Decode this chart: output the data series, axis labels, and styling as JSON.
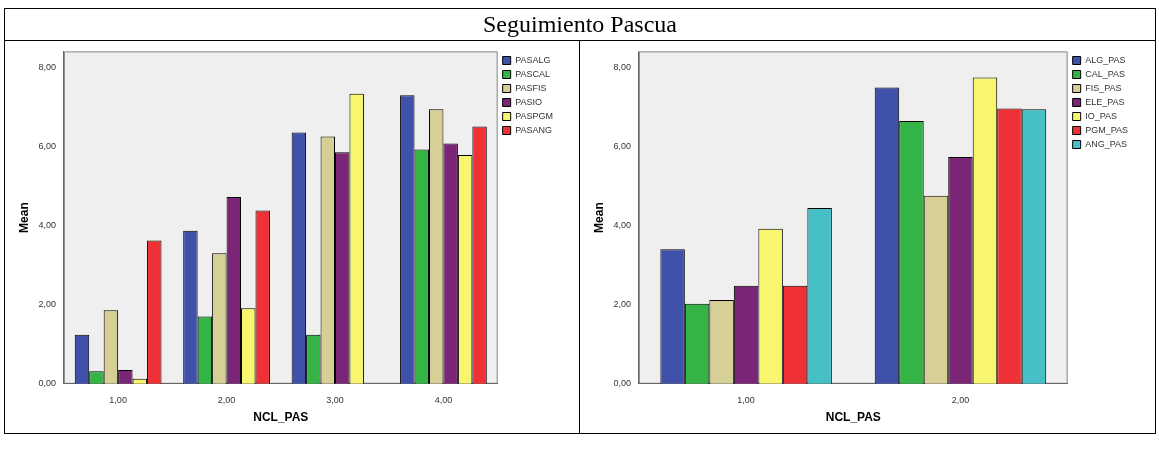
{
  "chart_data": [
    {
      "type": "bar",
      "title": "Seguimiento Pascua",
      "xlabel": "NCL_PAS",
      "ylabel": "Mean",
      "categories": [
        "1,00",
        "2,00",
        "3,00",
        "4,00"
      ],
      "series": [
        {
          "name": "PASALG",
          "color": "#3f51a8",
          "values": [
            1.24,
            3.87,
            6.35,
            7.29
          ]
        },
        {
          "name": "PASCAL",
          "color": "#33b444",
          "values": [
            0.32,
            1.7,
            1.24,
            5.92
          ]
        },
        {
          "name": "PASFIS",
          "color": "#d6cf96",
          "values": [
            1.86,
            3.3,
            6.25,
            6.94
          ]
        },
        {
          "name": "PASIO",
          "color": "#7b2577",
          "values": [
            0.35,
            4.72,
            5.85,
            6.07
          ]
        },
        {
          "name": "PASPGM",
          "color": "#f8f56e",
          "values": [
            0.13,
            1.91,
            7.33,
            5.78
          ]
        },
        {
          "name": "PASANG",
          "color": "#ef3136",
          "values": [
            3.62,
            4.38,
            0,
            6.5
          ]
        }
      ],
      "ylim": [
        0,
        8.4
      ],
      "yticks": [
        {
          "value": 0,
          "label": "0,00"
        },
        {
          "value": 2,
          "label": "2,00"
        },
        {
          "value": 4,
          "label": "4,00"
        },
        {
          "value": 6,
          "label": "6,00"
        },
        {
          "value": 8,
          "label": "8,00"
        }
      ],
      "grid": false,
      "legend": "top right"
    },
    {
      "type": "bar",
      "xlabel": "NCL_PAS",
      "ylabel": "Mean",
      "categories": [
        "1,00",
        "2,00"
      ],
      "series": [
        {
          "name": "ALG_PAS",
          "color": "#3f51a8",
          "values": [
            3.4,
            7.49
          ]
        },
        {
          "name": "CAL_PAS",
          "color": "#33b444",
          "values": [
            2.02,
            6.64
          ]
        },
        {
          "name": "FIS_PAS",
          "color": "#d6cf96",
          "values": [
            2.12,
            4.75
          ]
        },
        {
          "name": "ELE_PAS",
          "color": "#7b2577",
          "values": [
            2.48,
            5.73
          ]
        },
        {
          "name": "IO_PAS",
          "color": "#f8f56e",
          "values": [
            3.92,
            7.74
          ]
        },
        {
          "name": "PGM_PAS",
          "color": "#ef3136",
          "values": [
            2.48,
            6.96
          ]
        },
        {
          "name": "ANG_PAS",
          "color": "#46c0c6",
          "values": [
            4.44,
            6.94
          ]
        }
      ],
      "ylim": [
        0,
        8.4
      ],
      "yticks": [
        {
          "value": 0,
          "label": "0,00"
        },
        {
          "value": 2,
          "label": "2,00"
        },
        {
          "value": 4,
          "label": "4,00"
        },
        {
          "value": 6,
          "label": "6,00"
        },
        {
          "value": 8,
          "label": "8,00"
        }
      ],
      "grid": false,
      "legend": "top right"
    }
  ]
}
